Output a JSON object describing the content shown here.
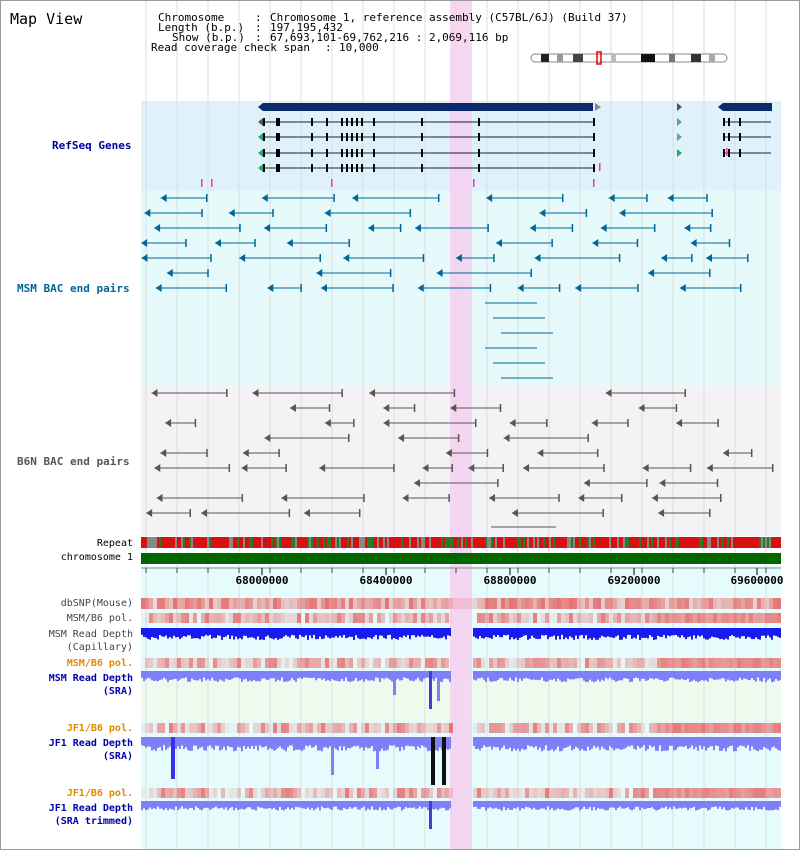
{
  "title": "Map View",
  "info": {
    "chromosome_key": "Chromosome",
    "chromosome_value": "Chromosome 1, reference assembly (C57BL/6J) (Build 37)",
    "length_key": "Length (b.p.)",
    "length_value": "197,195,432",
    "show_key": "Show (b.p.)",
    "show_value": "67,693,101-69,762,216 : 2,069,116 bp",
    "span_key": "Read coverage check span",
    "span_value": "10,000"
  },
  "tracks": {
    "refseq_genes": "RefSeq Genes",
    "msm_bac": "MSM BAC end pairs",
    "b6n_bac": "B6N BAC end pairs",
    "repeat": "Repeat",
    "chromosome": "chromosome 1",
    "dbsnp": "dbSNP(Mouse)",
    "msm_b6_pol_1": "MSM/B6 pol.",
    "msm_depth_cap": "MSM Read Depth\n(Capillary)",
    "msm_b6_pol_2": "MSM/B6 pol.",
    "msm_depth_sra": "MSM Read Depth\n(SRA)",
    "jf1_b6_pol_1": "JF1/B6 pol.",
    "jf1_depth_sra": "JF1 Read Depth\n(SRA)",
    "jf1_b6_pol_2": "JF1/B6 pol.",
    "jf1_depth_trim": "JF1 Read Depth\n(SRA trimmed)"
  },
  "axis": {
    "ticks": [
      "68000000",
      "68400000",
      "68800000",
      "69200000",
      "69600000"
    ]
  },
  "colors": {
    "refseq": "#0000cc",
    "msm_bac": "#006699",
    "b6n_bac": "#555555",
    "highlight": "#f5d0f0",
    "depth_blue": "#0000ee",
    "pol_red": "#ee2222",
    "orange_label": "#e08a00"
  }
}
